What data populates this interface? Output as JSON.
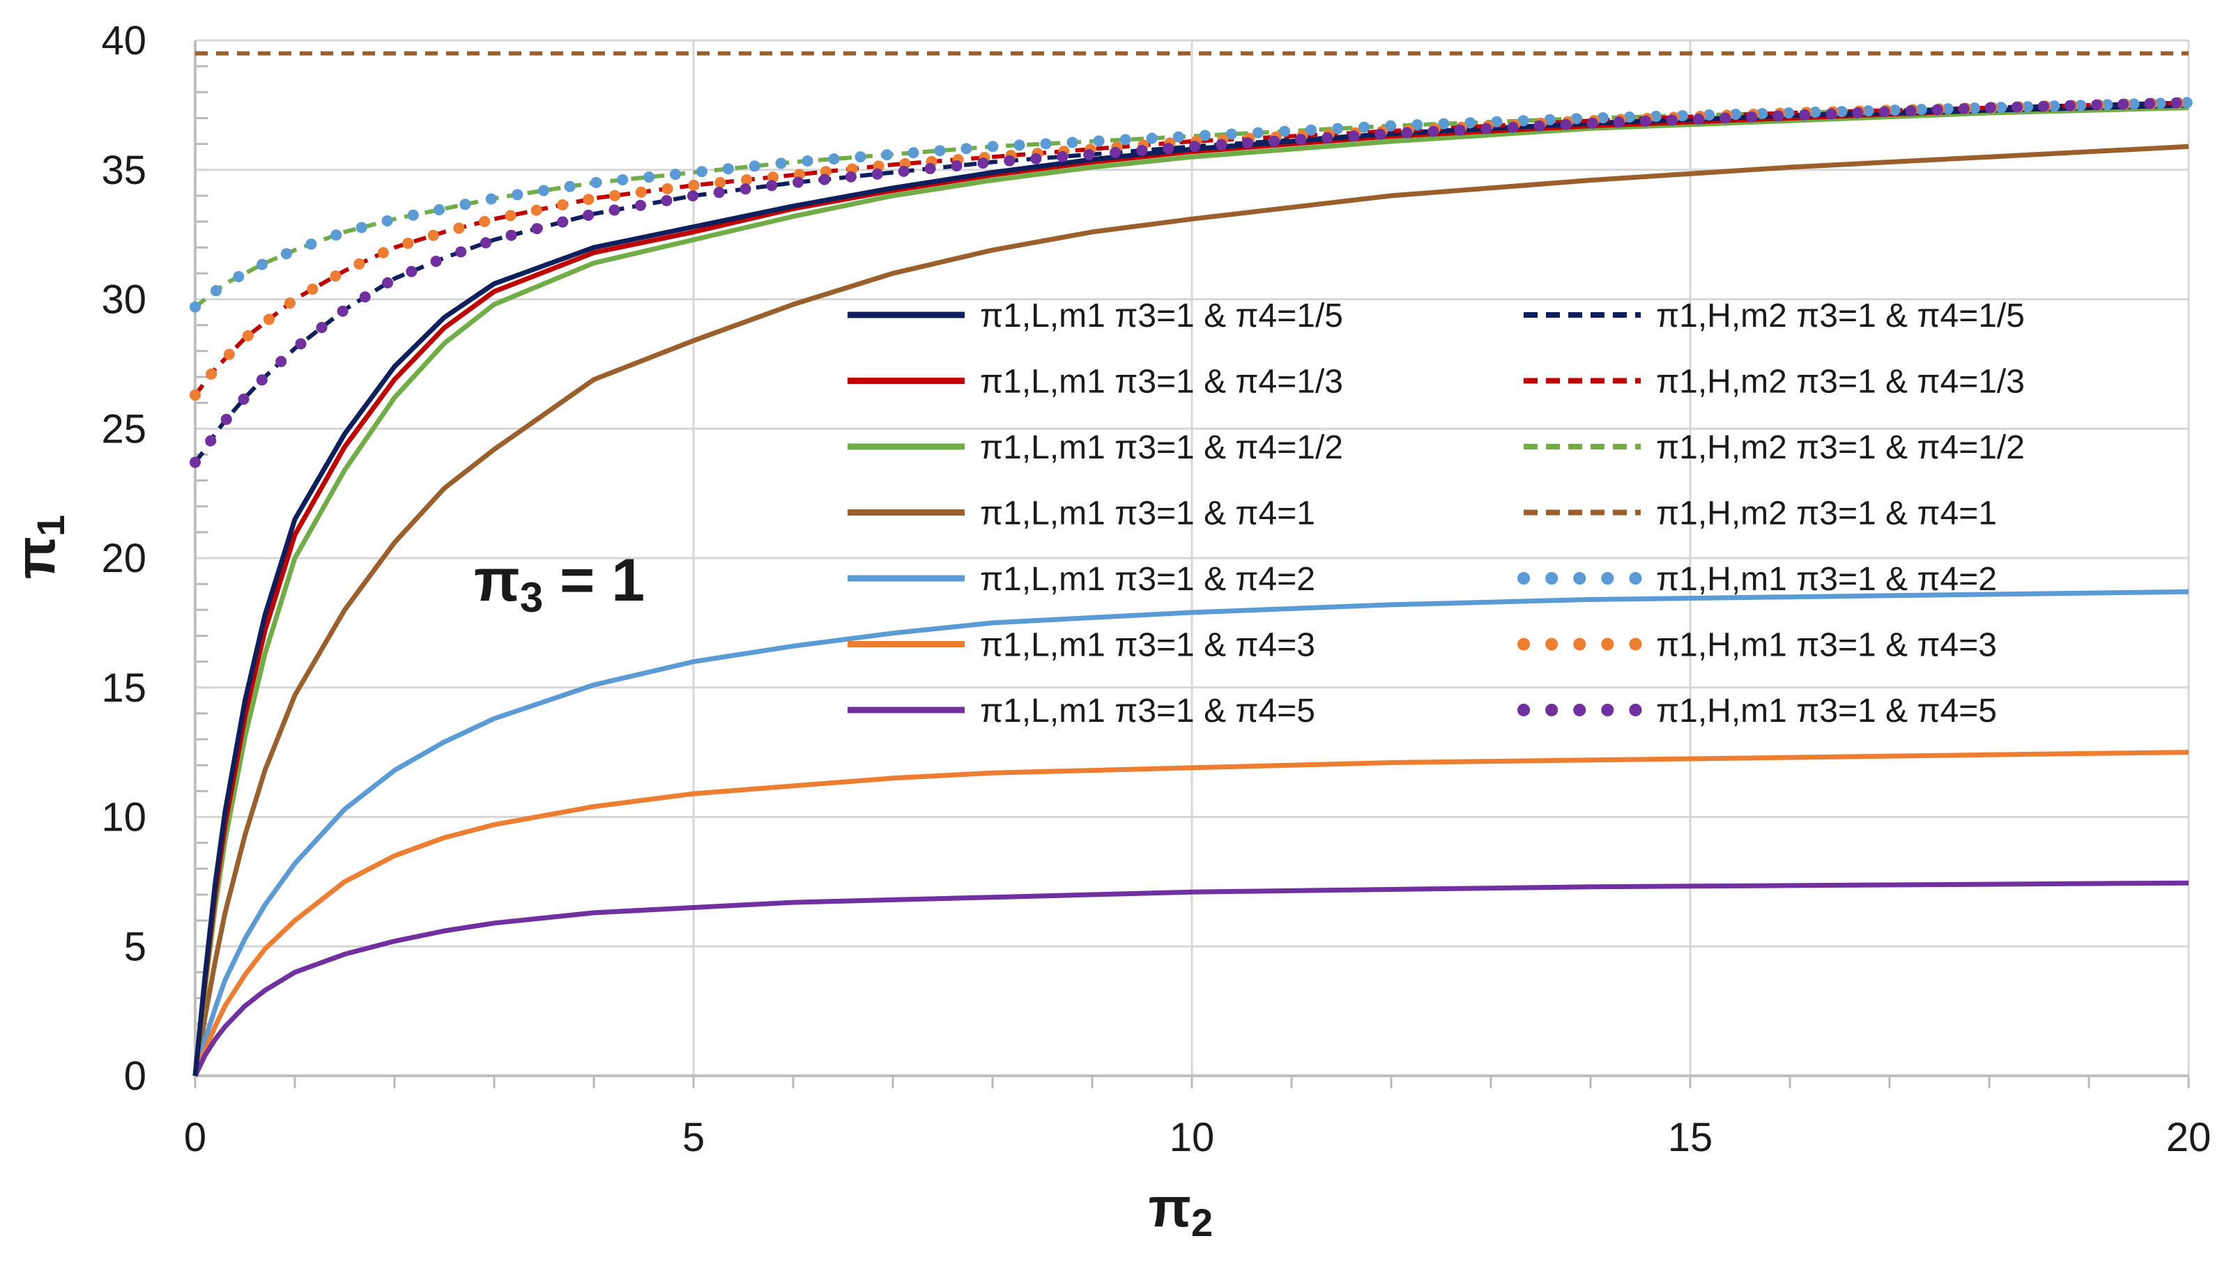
{
  "chart_data": {
    "type": "line",
    "title": "",
    "annotation": {
      "main": "π",
      "sub": "3",
      "rest": " = 1"
    },
    "xlabel": {
      "main": "π",
      "sub": "2"
    },
    "ylabel": {
      "main": "π",
      "sub": "1"
    },
    "xlim": [
      0,
      20
    ],
    "ylim": [
      0,
      40
    ],
    "xticks": [
      0,
      5,
      10,
      15,
      20
    ],
    "yticks": [
      0,
      5,
      10,
      15,
      20,
      25,
      30,
      35,
      40
    ],
    "x_minor_step": 1,
    "y_minor_step": 1,
    "grid": true,
    "legend_position": "center-right",
    "x": [
      0,
      0.1,
      0.2,
      0.3,
      0.5,
      0.7,
      1,
      1.5,
      2,
      2.5,
      3,
      4,
      5,
      6,
      7,
      8,
      9,
      10,
      12,
      14,
      16,
      18,
      20
    ],
    "series": [
      {
        "label": "π1,L,m1   π3=1 & π4=1/5",
        "color": "#0d1f5c",
        "style": "solid",
        "values": [
          0,
          3.9,
          7.4,
          10.2,
          14.5,
          17.8,
          21.5,
          24.8,
          27.4,
          29.3,
          30.6,
          32.0,
          32.8,
          33.6,
          34.3,
          34.9,
          35.4,
          35.8,
          36.4,
          36.8,
          37.1,
          37.3,
          37.5
        ]
      },
      {
        "label": "π1,L,m1   π3=1 & π4=1/3",
        "color": "#c00000",
        "style": "solid",
        "values": [
          0,
          3.7,
          7.0,
          9.7,
          13.9,
          17.2,
          20.9,
          24.3,
          26.9,
          28.9,
          30.3,
          31.8,
          32.6,
          33.5,
          34.2,
          34.8,
          35.3,
          35.7,
          36.3,
          36.7,
          37.0,
          37.3,
          37.5
        ]
      },
      {
        "label": "π1,L,m1   π3=1 & π4=1/2",
        "color": "#70ad47",
        "style": "solid",
        "values": [
          0,
          3.4,
          6.5,
          9.1,
          13.1,
          16.3,
          20.0,
          23.4,
          26.2,
          28.3,
          29.8,
          31.4,
          32.3,
          33.2,
          34.0,
          34.6,
          35.1,
          35.5,
          36.1,
          36.6,
          36.9,
          37.2,
          37.4
        ]
      },
      {
        "label": "π1,L,m1   π3=1 & π4=1",
        "color": "#9b5f2c",
        "style": "solid",
        "values": [
          0,
          2.3,
          4.4,
          6.3,
          9.3,
          11.8,
          14.7,
          18.0,
          20.6,
          22.7,
          24.2,
          26.9,
          28.4,
          29.8,
          31.0,
          31.9,
          32.6,
          33.1,
          34.0,
          34.6,
          35.1,
          35.5,
          35.9
        ]
      },
      {
        "label": "π1,L,m1   π3=1 & π4=2",
        "color": "#5b9bd5",
        "style": "solid",
        "values": [
          0,
          1.4,
          2.6,
          3.7,
          5.3,
          6.6,
          8.2,
          10.3,
          11.8,
          12.9,
          13.8,
          15.1,
          16.0,
          16.6,
          17.1,
          17.5,
          17.7,
          17.9,
          18.2,
          18.4,
          18.5,
          18.6,
          18.7
        ]
      },
      {
        "label": "π1,L,m1   π3=1 & π4=3",
        "color": "#ed7d31",
        "style": "solid",
        "values": [
          0,
          1.0,
          1.9,
          2.7,
          3.9,
          4.9,
          6.0,
          7.5,
          8.5,
          9.2,
          9.7,
          10.4,
          10.9,
          11.2,
          11.5,
          11.7,
          11.8,
          11.9,
          12.1,
          12.2,
          12.3,
          12.4,
          12.5
        ]
      },
      {
        "label": "π1,L,m1   π3=1 & π4=5",
        "color": "#7030a0",
        "style": "solid",
        "values": [
          0,
          0.8,
          1.4,
          1.9,
          2.7,
          3.3,
          4.0,
          4.7,
          5.2,
          5.6,
          5.9,
          6.3,
          6.5,
          6.7,
          6.8,
          6.9,
          7.0,
          7.1,
          7.2,
          7.3,
          7.35,
          7.4,
          7.45
        ]
      },
      {
        "label": "π1,H,m2   π3=1 & π4=1/5",
        "color": "#0d1f5c",
        "style": "dashed",
        "values": [
          23.7,
          24.2,
          24.8,
          25.3,
          26.2,
          27.0,
          28.1,
          29.6,
          30.8,
          31.6,
          32.3,
          33.3,
          34.0,
          34.5,
          34.9,
          35.3,
          35.6,
          35.9,
          36.4,
          36.8,
          37.1,
          37.4,
          37.6
        ]
      },
      {
        "label": "π1,H,m2   π3=1 & π4=1/3",
        "color": "#c00000",
        "style": "dashed",
        "values": [
          26.3,
          26.8,
          27.3,
          27.7,
          28.5,
          29.1,
          30.0,
          31.1,
          32.0,
          32.6,
          33.1,
          33.9,
          34.4,
          34.8,
          35.2,
          35.5,
          35.8,
          36.1,
          36.5,
          36.9,
          37.2,
          37.4,
          37.6
        ]
      },
      {
        "label": "π1,H,m2   π3=1 & π4=1/2",
        "color": "#70ad47",
        "style": "dashed",
        "values": [
          29.7,
          30.0,
          30.3,
          30.6,
          31.0,
          31.4,
          31.9,
          32.6,
          33.1,
          33.5,
          33.9,
          34.5,
          34.9,
          35.3,
          35.6,
          35.9,
          36.1,
          36.3,
          36.7,
          37.0,
          37.2,
          37.4,
          37.6
        ]
      },
      {
        "label": "π1,H,m2   π3=1 & π4=1",
        "color": "#9b5f2c",
        "style": "dashed",
        "values": [
          39.5,
          39.5,
          39.5,
          39.5,
          39.5,
          39.5,
          39.5,
          39.5,
          39.5,
          39.5,
          39.5,
          39.5,
          39.5,
          39.5,
          39.5,
          39.5,
          39.5,
          39.5,
          39.5,
          39.5,
          39.5,
          39.5,
          39.5
        ]
      },
      {
        "label": "π1,H,m1   π3=1 & π4=2",
        "color": "#5b9bd5",
        "style": "dotted",
        "values": [
          29.7,
          30.0,
          30.3,
          30.6,
          31.0,
          31.4,
          31.9,
          32.6,
          33.1,
          33.5,
          33.9,
          34.5,
          34.9,
          35.3,
          35.6,
          35.9,
          36.1,
          36.3,
          36.7,
          37.0,
          37.2,
          37.4,
          37.6
        ]
      },
      {
        "label": "π1,H,m1   π3=1 & π4=3",
        "color": "#ed7d31",
        "style": "dotted",
        "values": [
          26.3,
          26.8,
          27.3,
          27.7,
          28.5,
          29.1,
          30.0,
          31.1,
          32.0,
          32.6,
          33.1,
          33.9,
          34.4,
          34.8,
          35.2,
          35.5,
          35.8,
          36.1,
          36.5,
          36.9,
          37.2,
          37.4,
          37.6
        ]
      },
      {
        "label": "π1,H,m1   π3=1 & π4=5",
        "color": "#7030a0",
        "style": "dotted",
        "values": [
          23.7,
          24.2,
          24.8,
          25.3,
          26.2,
          27.0,
          28.1,
          29.6,
          30.8,
          31.6,
          32.3,
          33.3,
          34.0,
          34.5,
          34.9,
          35.3,
          35.6,
          35.9,
          36.4,
          36.8,
          37.1,
          37.4,
          37.6
        ]
      }
    ]
  }
}
